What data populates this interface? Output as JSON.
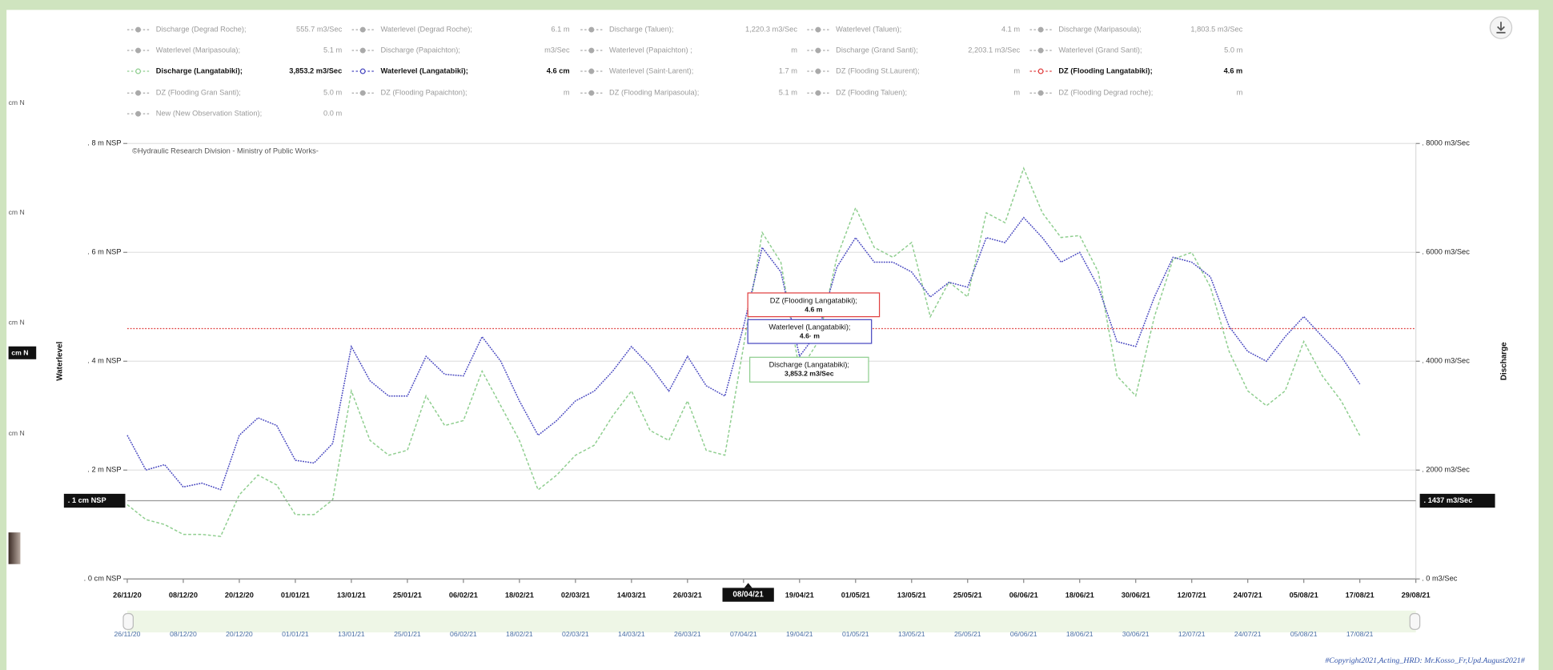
{
  "chart_data": {
    "type": "line",
    "watermark": "©Hydraulic Research Division - Ministry of Public Works-",
    "ylabel": "Waterlevel",
    "y2label": "Discharge",
    "ylim": [
      0,
      8
    ],
    "yticks": [
      {
        "value": 8,
        "label": ". 8  m NSP"
      },
      {
        "value": 6,
        "label": ". 6  m NSP"
      },
      {
        "value": 4,
        "label": ". 4  m NSP"
      },
      {
        "value": 2,
        "label": ". 2  m NSP"
      },
      {
        "value": 0,
        "label": ". 0 cm NSP"
      }
    ],
    "y2lim": [
      0,
      8000
    ],
    "y2ticks": [
      {
        "value": 8000,
        "label": ". 8000 m3/Sec"
      },
      {
        "value": 6000,
        "label": ". 6000 m3/Sec"
      },
      {
        "value": 4000,
        "label": ". 4000 m3/Sec"
      },
      {
        "value": 2000,
        "label": ". 2000 m3/Sec"
      },
      {
        "value": 0,
        "label": ". 0 m3/Sec"
      }
    ],
    "xlim": [
      "2020-11-26",
      "2021-08-29"
    ],
    "xticks": [
      {
        "value": "2020-11-26",
        "label": "26/11/20"
      },
      {
        "value": "2020-12-08",
        "label": "08/12/20"
      },
      {
        "value": "2020-12-20",
        "label": "20/12/20"
      },
      {
        "value": "2021-01-01",
        "label": "01/01/21"
      },
      {
        "value": "2021-01-13",
        "label": "13/01/21"
      },
      {
        "value": "2021-01-25",
        "label": "25/01/21"
      },
      {
        "value": "2021-02-06",
        "label": "06/02/21"
      },
      {
        "value": "2021-02-18",
        "label": "18/02/21"
      },
      {
        "value": "2021-03-02",
        "label": "02/03/21"
      },
      {
        "value": "2021-03-14",
        "label": "14/03/21"
      },
      {
        "value": "2021-03-26",
        "label": "26/03/21"
      },
      {
        "value": "2021-04-07",
        "label": "07/04/21"
      },
      {
        "value": "2021-04-19",
        "label": "19/04/21"
      },
      {
        "value": "2021-05-01",
        "label": "01/05/21"
      },
      {
        "value": "2021-05-13",
        "label": "13/05/21"
      },
      {
        "value": "2021-05-25",
        "label": "25/05/21"
      },
      {
        "value": "2021-06-06",
        "label": "06/06/21"
      },
      {
        "value": "2021-06-18",
        "label": "18/06/21"
      },
      {
        "value": "2021-06-30",
        "label": "30/06/21"
      },
      {
        "value": "2021-07-12",
        "label": "12/07/21"
      },
      {
        "value": "2021-07-24",
        "label": "24/07/21"
      },
      {
        "value": "2021-08-05",
        "label": "05/08/21"
      },
      {
        "value": "2021-08-17",
        "label": "17/08/21"
      },
      {
        "value": "2021-08-29",
        "label": "29/08/21"
      }
    ],
    "grid": true,
    "x": [
      "2020-11-26",
      "2020-11-30",
      "2020-12-04",
      "2020-12-08",
      "2020-12-12",
      "2020-12-16",
      "2020-12-20",
      "2020-12-24",
      "2020-12-28",
      "2021-01-01",
      "2021-01-05",
      "2021-01-09",
      "2021-01-13",
      "2021-01-17",
      "2021-01-21",
      "2021-01-25",
      "2021-01-29",
      "2021-02-02",
      "2021-02-06",
      "2021-02-10",
      "2021-02-14",
      "2021-02-18",
      "2021-02-22",
      "2021-02-26",
      "2021-03-02",
      "2021-03-06",
      "2021-03-10",
      "2021-03-14",
      "2021-03-18",
      "2021-03-22",
      "2021-03-26",
      "2021-03-30",
      "2021-04-03",
      "2021-04-07",
      "2021-04-11",
      "2021-04-15",
      "2021-04-19",
      "2021-04-23",
      "2021-04-27",
      "2021-05-01",
      "2021-05-05",
      "2021-05-09",
      "2021-05-13",
      "2021-05-17",
      "2021-05-21",
      "2021-05-25",
      "2021-05-29",
      "2021-06-02",
      "2021-06-06",
      "2021-06-10",
      "2021-06-14",
      "2021-06-18",
      "2021-06-22",
      "2021-06-26",
      "2021-06-30",
      "2021-07-04",
      "2021-07-08",
      "2021-07-12",
      "2021-07-16",
      "2021-07-20",
      "2021-07-24",
      "2021-07-28",
      "2021-08-01",
      "2021-08-05",
      "2021-08-09",
      "2021-08-13",
      "2021-08-17"
    ],
    "series": [
      {
        "name": "Discharge (Degrad Roche);",
        "readout": "555.7 m3/Sec",
        "color": "#aaaaaa",
        "visible": false
      },
      {
        "name": "Waterlevel (Degrad Roche);",
        "readout": "6.1  m",
        "color": "#aaaaaa",
        "visible": false
      },
      {
        "name": "Discharge (Taluen);",
        "readout": "1,220.3 m3/Sec",
        "color": "#aaaaaa",
        "visible": false
      },
      {
        "name": "Waterlevel (Taluen);",
        "readout": "4.1  m",
        "color": "#aaaaaa",
        "visible": false
      },
      {
        "name": "Discharge (Maripasoula);",
        "readout": "1,803.5 m3/Sec",
        "color": "#aaaaaa",
        "visible": false
      },
      {
        "name": "Waterlevel (Maripasoula);",
        "readout": "5.1  m",
        "color": "#aaaaaa",
        "visible": false
      },
      {
        "name": "Discharge (Papaichton);",
        "readout": "m3/Sec",
        "color": "#aaaaaa",
        "visible": false
      },
      {
        "name": "Waterlevel (Papaichton) ;",
        "readout": "m",
        "color": "#aaaaaa",
        "visible": false
      },
      {
        "name": "Discharge (Grand Santi);",
        "readout": "2,203.1 m3/Sec",
        "color": "#aaaaaa",
        "visible": false
      },
      {
        "name": "Waterlevel (Grand Santi);",
        "readout": "5.0  m",
        "color": "#aaaaaa",
        "visible": false
      },
      {
        "name": "Discharge (Langatabiki);",
        "readout": "3,853.2 m3/Sec",
        "color": "#8fce8f",
        "visible": true,
        "axis": "y2",
        "values": [
          1364,
          1091,
          1000,
          818,
          818,
          782,
          1545,
          1909,
          1727,
          1182,
          1182,
          1455,
          3455,
          2545,
          2273,
          2364,
          3364,
          2818,
          2909,
          3818,
          3182,
          2545,
          1636,
          1909,
          2273,
          2455,
          3000,
          3455,
          2727,
          2545,
          3273,
          2364,
          2273,
          4273,
          6364,
          5818,
          3818,
          4364,
          5909,
          6818,
          6091,
          5909,
          6182,
          4818,
          5455,
          5182,
          6727,
          6545,
          7545,
          6727,
          6273,
          6309,
          5636,
          3727,
          3364,
          4818,
          5873,
          6000,
          5364,
          4182,
          3455,
          3182,
          3455,
          4364,
          3727,
          3273,
          2636
        ]
      },
      {
        "name": "Waterlevel (Langatabiki);",
        "readout": "4.6 cm",
        "color": "#4848c0",
        "visible": true,
        "values": [
          2.64,
          2.0,
          2.1,
          1.69,
          1.76,
          1.64,
          2.64,
          2.96,
          2.82,
          2.18,
          2.13,
          2.49,
          4.27,
          3.64,
          3.36,
          3.36,
          4.09,
          3.76,
          3.73,
          4.45,
          4.0,
          3.27,
          2.64,
          2.91,
          3.27,
          3.45,
          3.82,
          4.27,
          3.91,
          3.45,
          4.09,
          3.55,
          3.36,
          4.64,
          6.09,
          5.64,
          4.09,
          4.55,
          5.73,
          6.27,
          5.82,
          5.82,
          5.64,
          5.18,
          5.45,
          5.36,
          6.27,
          6.18,
          6.64,
          6.27,
          5.82,
          6.0,
          5.36,
          4.36,
          4.27,
          5.18,
          5.91,
          5.82,
          5.55,
          4.64,
          4.18,
          4.0,
          4.45,
          4.82,
          4.45,
          4.09,
          3.58
        ]
      },
      {
        "name": "Waterlevel (Saint-Larent);",
        "readout": "1.7  m",
        "color": "#aaaaaa",
        "visible": false
      },
      {
        "name": "DZ (Flooding St.Laurent);",
        "readout": "m",
        "color": "#aaaaaa",
        "visible": false
      },
      {
        "name": "DZ (Flooding Langatabiki);",
        "readout": "4.6  m",
        "color": "#e04040",
        "visible": true,
        "level": 4.6
      },
      {
        "name": "DZ (Flooding Gran Santi);",
        "readout": "5.0  m",
        "color": "#aaaaaa",
        "visible": false
      },
      {
        "name": "DZ (Flooding Papaichton);",
        "readout": "m",
        "color": "#aaaaaa",
        "visible": false
      },
      {
        "name": "DZ (Flooding Maripasoula);",
        "readout": "5.1  m",
        "color": "#aaaaaa",
        "visible": false
      },
      {
        "name": "DZ (Flooding Taluen);",
        "readout": "m",
        "color": "#aaaaaa",
        "visible": false
      },
      {
        "name": "DZ (Flooding Degrad roche);",
        "readout": "m",
        "color": "#aaaaaa",
        "visible": false
      },
      {
        "name": "New (New Observation Station);",
        "readout": "0.0  m",
        "color": "#aaaaaa",
        "visible": false
      }
    ],
    "tooltips": [
      {
        "series": 14,
        "name": "DZ (Flooding Langatabiki);",
        "value": "4.6  m"
      },
      {
        "series": 11,
        "name": "Waterlevel (Langatabiki);",
        "value": "4.6·  m"
      },
      {
        "series": 10,
        "name": "Discharge (Langatabiki);",
        "value": "3,853.2 m3/Sec"
      }
    ],
    "crosshair": {
      "x": "2021-04-08",
      "x_label": "08/04/21",
      "y2": 1437,
      "y_label": ". 1 cm NSP",
      "y2_label": ". 1437 m3/Sec"
    },
    "left_edge_labels": [
      "cm N",
      "cm N",
      "cm N",
      "cm N"
    ],
    "left_edge_highlight": "cm N",
    "copyright": "#Copyright2021,Acting_HRD: Mr.Kosso_Fr,Upd.August2021#"
  }
}
